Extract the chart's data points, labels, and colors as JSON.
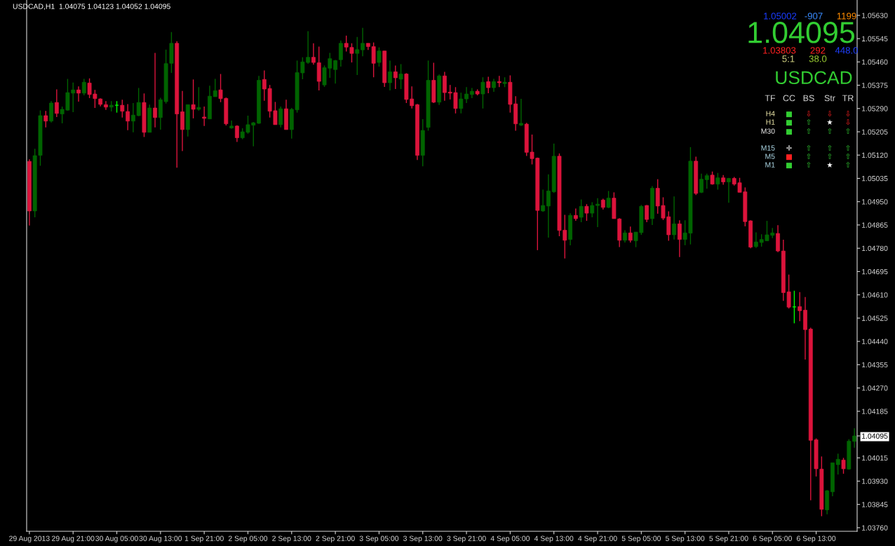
{
  "chart_data": {
    "type": "candlestick",
    "categories": [
      "29 Aug 2013",
      null,
      null,
      null,
      null,
      null,
      null,
      null,
      "29 Aug 21:00",
      null,
      null,
      null,
      null,
      null,
      null,
      null,
      "30 Aug 05:00",
      null,
      null,
      null,
      null,
      null,
      null,
      null,
      "30 Aug 13:00",
      null,
      null,
      null,
      null,
      null,
      null,
      null,
      "1 Sep 21:00",
      null,
      null,
      null,
      null,
      null,
      null,
      null,
      "2 Sep 05:00",
      null,
      null,
      null,
      null,
      null,
      null,
      null,
      "2 Sep 13:00",
      null,
      null,
      null,
      null,
      null,
      null,
      null,
      "2 Sep 21:00",
      null,
      null,
      null,
      null,
      null,
      null,
      null,
      "3 Sep 05:00",
      null,
      null,
      null,
      null,
      null,
      null,
      null,
      "3 Sep 13:00",
      null,
      null,
      null,
      null,
      null,
      null,
      null,
      "3 Sep 21:00",
      null,
      null,
      null,
      null,
      null,
      null,
      null,
      "4 Sep 05:00",
      null,
      null,
      null,
      null,
      null,
      null,
      null,
      "4 Sep 13:00",
      null,
      null,
      null,
      null,
      null,
      null,
      null,
      "4 Sep 21:00",
      null,
      null,
      null,
      null,
      null,
      null,
      null,
      "5 Sep 05:00",
      null,
      null,
      null,
      null,
      null,
      null,
      null,
      "5 Sep 13:00",
      null,
      null,
      null,
      null,
      null,
      null,
      null,
      "5 Sep 21:00",
      null,
      null,
      null,
      null,
      null,
      null,
      null,
      "6 Sep 05:00",
      null,
      null,
      null,
      null,
      null,
      null,
      null,
      "6 Sep 13:00",
      null,
      null,
      null,
      null,
      null,
      null,
      null
    ],
    "ohlc": [
      [
        1.05097,
        1.05105,
        1.04863,
        1.04916
      ],
      [
        1.04916,
        1.05143,
        1.04893,
        1.05118
      ],
      [
        1.05119,
        1.05283,
        1.05081,
        1.05264
      ],
      [
        1.05264,
        1.05281,
        1.05221,
        1.05244
      ],
      [
        1.05244,
        1.05317,
        1.05239,
        1.0531
      ],
      [
        1.05312,
        1.0536,
        1.05259,
        1.05272
      ],
      [
        1.0527,
        1.05297,
        1.05236,
        1.05287
      ],
      [
        1.05284,
        1.05398,
        1.05282,
        1.05348
      ],
      [
        1.05346,
        1.05385,
        1.05277,
        1.05358
      ],
      [
        1.05358,
        1.05371,
        1.05315,
        1.05346
      ],
      [
        1.05346,
        1.05398,
        1.05338,
        1.05386
      ],
      [
        1.05383,
        1.054,
        1.05328,
        1.05341
      ],
      [
        1.05343,
        1.05358,
        1.05292,
        1.05326
      ],
      [
        1.05325,
        1.05327,
        1.05298,
        1.05305
      ],
      [
        1.05304,
        1.05317,
        1.05285,
        1.05295
      ],
      [
        1.05295,
        1.05317,
        1.05279,
        1.05302
      ],
      [
        1.05302,
        1.05317,
        1.05275,
        1.05302
      ],
      [
        1.05302,
        1.05322,
        1.05257,
        1.0528
      ],
      [
        1.05279,
        1.05306,
        1.05211,
        1.05244
      ],
      [
        1.05244,
        1.0531,
        1.05203,
        1.05266
      ],
      [
        1.05264,
        1.05365,
        1.05262,
        1.05312
      ],
      [
        1.05312,
        1.05345,
        1.05186,
        1.05203
      ],
      [
        1.05203,
        1.05304,
        1.05203,
        1.05292
      ],
      [
        1.05292,
        1.05493,
        1.05221,
        1.05257
      ],
      [
        1.05257,
        1.05329,
        1.05213,
        1.05322
      ],
      [
        1.05315,
        1.05505,
        1.05308,
        1.05454
      ],
      [
        1.05455,
        1.05569,
        1.0542,
        1.05528
      ],
      [
        1.05528,
        1.05536,
        1.05074,
        1.0527
      ],
      [
        1.05278,
        1.05354,
        1.05135,
        1.05213
      ],
      [
        1.05213,
        1.05304,
        1.05188,
        1.05304
      ],
      [
        1.05304,
        1.05396,
        1.05254,
        1.05287
      ],
      [
        1.05287,
        1.05368,
        1.05282,
        1.05294
      ],
      [
        1.05259,
        1.05297,
        1.05226,
        1.05254
      ],
      [
        1.05252,
        1.05373,
        1.05252,
        1.05335
      ],
      [
        1.05333,
        1.05398,
        1.05333,
        1.05355
      ],
      [
        1.05358,
        1.05416,
        1.05313,
        1.05326
      ],
      [
        1.05327,
        1.0533,
        1.05228,
        1.05234
      ],
      [
        1.05219,
        1.05246,
        1.05216,
        1.05226
      ],
      [
        1.05226,
        1.05229,
        1.05168,
        1.05183
      ],
      [
        1.05183,
        1.05218,
        1.05178,
        1.05205
      ],
      [
        1.05203,
        1.05264,
        1.05198,
        1.05231
      ],
      [
        1.05229,
        1.05241,
        1.05152,
        1.05238
      ],
      [
        1.05236,
        1.05409,
        1.05234,
        1.05393
      ],
      [
        1.05396,
        1.05429,
        1.05318,
        1.05361
      ],
      [
        1.05363,
        1.05376,
        1.05257,
        1.0528
      ],
      [
        1.05282,
        1.05314,
        1.05231,
        1.05231
      ],
      [
        1.05231,
        1.05297,
        1.05221,
        1.05289
      ],
      [
        1.05289,
        1.05322,
        1.05213,
        1.05213
      ],
      [
        1.05213,
        1.05292,
        1.0518,
        1.05287
      ],
      [
        1.05285,
        1.05465,
        1.05275,
        1.05421
      ],
      [
        1.0542,
        1.05477,
        1.05397,
        1.0546
      ],
      [
        1.05458,
        1.05572,
        1.05453,
        1.05477
      ],
      [
        1.05477,
        1.05528,
        1.0545,
        1.05458
      ],
      [
        1.05457,
        1.05516,
        1.05356,
        1.05389
      ],
      [
        1.05376,
        1.05447,
        1.05369,
        1.05439
      ],
      [
        1.05437,
        1.05493,
        1.05402,
        1.05472
      ],
      [
        1.05432,
        1.05467,
        1.05381,
        1.05465
      ],
      [
        1.05468,
        1.05538,
        1.05443,
        1.05528
      ],
      [
        1.05528,
        1.05556,
        1.05498,
        1.05514
      ],
      [
        1.05513,
        1.05528,
        1.05458,
        1.05491
      ],
      [
        1.05491,
        1.05551,
        1.05412,
        1.05505
      ],
      [
        1.05504,
        1.05584,
        1.05481,
        1.05528
      ],
      [
        1.05528,
        1.05528,
        1.05504,
        1.05516
      ],
      [
        1.05516,
        1.05531,
        1.05404,
        1.05455
      ],
      [
        1.05458,
        1.05513,
        1.05443,
        1.055
      ],
      [
        1.055,
        1.055,
        1.05369,
        1.05384
      ],
      [
        1.05384,
        1.05465,
        1.05356,
        1.05424
      ],
      [
        1.05424,
        1.05447,
        1.05361,
        1.05402
      ],
      [
        1.05397,
        1.05452,
        1.05361,
        1.05416
      ],
      [
        1.05416,
        1.05419,
        1.0531,
        1.05323
      ],
      [
        1.05325,
        1.05371,
        1.0529,
        1.053
      ],
      [
        1.05304,
        1.05307,
        1.05102,
        1.05119
      ],
      [
        1.05119,
        1.05251,
        1.05079,
        1.0521
      ],
      [
        1.05221,
        1.05465,
        1.05209,
        1.05393
      ],
      [
        1.05393,
        1.05457,
        1.0531,
        1.05313
      ],
      [
        1.05313,
        1.05414,
        1.05303,
        1.05409
      ],
      [
        1.05409,
        1.05424,
        1.05318,
        1.05348
      ],
      [
        1.0535,
        1.05376,
        1.05323,
        1.05346
      ],
      [
        1.05348,
        1.05368,
        1.05272,
        1.0529
      ],
      [
        1.0529,
        1.05348,
        1.05272,
        1.05325
      ],
      [
        1.05325,
        1.05368,
        1.0531,
        1.05343
      ],
      [
        1.05341,
        1.05365,
        1.05328,
        1.05353
      ],
      [
        1.05353,
        1.0536,
        1.05338,
        1.05343
      ],
      [
        1.05343,
        1.05404,
        1.0529,
        1.05386
      ],
      [
        1.05388,
        1.05406,
        1.05346,
        1.05366
      ],
      [
        1.05366,
        1.05398,
        1.05351,
        1.05388
      ],
      [
        1.05388,
        1.05409,
        1.05368,
        1.05384
      ],
      [
        1.05381,
        1.05404,
        1.05368,
        1.05386
      ],
      [
        1.05386,
        1.05411,
        1.05275,
        1.05305
      ],
      [
        1.05307,
        1.05335,
        1.05209,
        1.05234
      ],
      [
        1.05229,
        1.05325,
        1.05226,
        1.05236
      ],
      [
        1.05233,
        1.05238,
        1.05117,
        1.0513
      ],
      [
        1.05131,
        1.05195,
        1.05086,
        1.05107
      ],
      [
        1.05109,
        1.05111,
        1.04773,
        1.04918
      ],
      [
        1.04916,
        1.04994,
        1.04913,
        1.04936
      ],
      [
        1.04934,
        1.0505,
        1.04819,
        1.04989
      ],
      [
        1.04986,
        1.05162,
        1.04982,
        1.05116
      ],
      [
        1.05116,
        1.05126,
        1.04824,
        1.04845
      ],
      [
        1.04846,
        1.04902,
        1.04743,
        1.04809
      ],
      [
        1.04812,
        1.04908,
        1.04791,
        1.049
      ],
      [
        1.049,
        1.04925,
        1.0488,
        1.04888
      ],
      [
        1.04893,
        1.04958,
        1.04875,
        1.04933
      ],
      [
        1.04933,
        1.04941,
        1.0488,
        1.04908
      ],
      [
        1.04908,
        1.04948,
        1.04893,
        1.04936
      ],
      [
        1.04936,
        1.04963,
        1.04857,
        1.04941
      ],
      [
        1.04956,
        1.04961,
        1.04921,
        1.04929
      ],
      [
        1.04929,
        1.04989,
        1.04926,
        1.04963
      ],
      [
        1.04963,
        1.04984,
        1.04888,
        1.04888
      ],
      [
        1.04887,
        1.0489,
        1.04784,
        1.04809
      ],
      [
        1.04809,
        1.04846,
        1.04801,
        1.04836
      ],
      [
        1.04836,
        1.04859,
        1.04801,
        1.04809
      ],
      [
        1.04807,
        1.04839,
        1.04784,
        1.04839
      ],
      [
        1.04837,
        1.04938,
        1.04829,
        1.04933
      ],
      [
        1.04936,
        1.04938,
        1.04875,
        1.04885
      ],
      [
        1.04888,
        1.05007,
        1.04865,
        1.04999
      ],
      [
        1.04999,
        1.05032,
        1.04906,
        1.04934
      ],
      [
        1.04936,
        1.04966,
        1.04883,
        1.0489
      ],
      [
        1.04895,
        1.04915,
        1.04807,
        1.04829
      ],
      [
        1.04829,
        1.04969,
        1.04812,
        1.04869
      ],
      [
        1.04869,
        1.04882,
        1.04748,
        1.04812
      ],
      [
        1.04812,
        1.04882,
        1.04791,
        1.04836
      ],
      [
        1.04835,
        1.05149,
        1.04794,
        1.05098
      ],
      [
        1.05098,
        1.05114,
        1.04974,
        1.0498
      ],
      [
        1.04984,
        1.05052,
        1.04981,
        1.05032
      ],
      [
        1.0503,
        1.05052,
        1.04997,
        1.05045
      ],
      [
        1.05047,
        1.0506,
        1.05012,
        1.05014
      ],
      [
        1.05014,
        1.05055,
        1.04994,
        1.05037
      ],
      [
        1.05037,
        1.05047,
        1.05012,
        1.05022
      ],
      [
        1.05022,
        1.05037,
        1.04946,
        1.05035
      ],
      [
        1.05035,
        1.0504,
        1.05009,
        1.05014
      ],
      [
        1.05019,
        1.05037,
        1.04984,
        1.04984
      ],
      [
        1.04986,
        1.05002,
        1.0486,
        1.04877
      ],
      [
        1.0488,
        1.04882,
        1.0478,
        1.04784
      ],
      [
        1.04786,
        1.04838,
        1.04781,
        1.04803
      ],
      [
        1.04801,
        1.04831,
        1.04786,
        1.04812
      ],
      [
        1.04807,
        1.0488,
        1.04807,
        1.04829
      ],
      [
        1.04827,
        1.04854,
        1.04817,
        1.04836
      ],
      [
        1.04834,
        1.04864,
        1.04766,
        1.0477
      ],
      [
        1.0477,
        1.04811,
        1.04588,
        1.04618
      ],
      [
        1.04621,
        1.04684,
        1.0456,
        1.04565
      ],
      [
        1.04566,
        1.04625,
        1.04506,
        1.04566
      ],
      [
        1.04567,
        1.0462,
        1.04514,
        1.04552
      ],
      [
        1.04554,
        1.04602,
        1.04374,
        1.04483
      ],
      [
        1.04485,
        1.0449,
        1.0386,
        1.04079
      ],
      [
        1.04081,
        1.04086,
        1.03947,
        1.03975
      ],
      [
        1.03974,
        1.0402,
        1.03802,
        1.03827
      ],
      [
        1.03825,
        1.03897,
        1.03809,
        1.03895
      ],
      [
        1.03891,
        1.03997,
        1.03875,
        1.03997
      ],
      [
        1.0399,
        1.0403,
        1.03954,
        1.0401
      ],
      [
        1.04007,
        1.04015,
        1.03957,
        1.03975
      ],
      [
        1.03974,
        1.04083,
        1.03972,
        1.04076
      ],
      [
        1.04075,
        1.04123,
        1.04052,
        1.04095
      ]
    ],
    "colors": [
      "#dc143c",
      "#006400",
      "#006400",
      "#dc143c",
      "#006400",
      "#dc143c",
      "#006400",
      "#006400",
      "#006400",
      "#dc143c",
      "#006400",
      "#dc143c",
      "#dc143c",
      "#dc143c",
      "#dc143c",
      "#006400",
      "#00ff00",
      "#dc143c",
      "#dc143c",
      "#006400",
      "#006400",
      "#dc143c",
      "#006400",
      "#dc143c",
      "#006400",
      "#006400",
      "#006400",
      "#dc143c",
      "#dc143c",
      "#006400",
      "#dc143c",
      "#006400",
      "#dc143c",
      "#006400",
      "#006400",
      "#dc143c",
      "#dc143c",
      "#006400",
      "#dc143c",
      "#006400",
      "#006400",
      "#006400",
      "#006400",
      "#dc143c",
      "#dc143c",
      "#dc143c",
      "#006400",
      "#dc143c",
      "#006400",
      "#006400",
      "#006400",
      "#006400",
      "#dc143c",
      "#dc143c",
      "#006400",
      "#006400",
      "#006400",
      "#006400",
      "#dc143c",
      "#dc143c",
      "#006400",
      "#006400",
      "#dc143c",
      "#dc143c",
      "#006400",
      "#dc143c",
      "#006400",
      "#dc143c",
      "#006400",
      "#dc143c",
      "#dc143c",
      "#dc143c",
      "#006400",
      "#006400",
      "#dc143c",
      "#006400",
      "#dc143c",
      "#dc143c",
      "#dc143c",
      "#006400",
      "#006400",
      "#006400",
      "#dc143c",
      "#006400",
      "#dc143c",
      "#006400",
      "#dc143c",
      "#006400",
      "#dc143c",
      "#dc143c",
      "#006400",
      "#dc143c",
      "#dc143c",
      "#dc143c",
      "#006400",
      "#006400",
      "#006400",
      "#dc143c",
      "#dc143c",
      "#006400",
      "#dc143c",
      "#006400",
      "#dc143c",
      "#006400",
      "#006400",
      "#dc143c",
      "#006400",
      "#dc143c",
      "#dc143c",
      "#006400",
      "#dc143c",
      "#006400",
      "#006400",
      "#dc143c",
      "#006400",
      "#dc143c",
      "#dc143c",
      "#dc143c",
      "#006400",
      "#dc143c",
      "#006400",
      "#006400",
      "#dc143c",
      "#006400",
      "#006400",
      "#dc143c",
      "#006400",
      "#dc143c",
      "#006400",
      "#dc143c",
      "#dc143c",
      "#dc143c",
      "#dc143c",
      "#006400",
      "#006400",
      "#006400",
      "#006400",
      "#dc143c",
      "#dc143c",
      "#dc143c",
      "#00ff00",
      "#dc143c",
      "#dc143c",
      "#dc143c",
      "#dc143c",
      "#dc143c",
      "#006400",
      "#006400",
      "#006400",
      "#dc143c",
      "#006400",
      "#006400"
    ],
    "ylim": [
      1.03747,
      1.05686
    ],
    "yticks": [
      {
        "value": 1.0563,
        "label": "1.05630"
      },
      {
        "value": 1.05545,
        "label": "1.05545"
      },
      {
        "value": 1.0546,
        "label": "1.05460"
      },
      {
        "value": 1.05375,
        "label": "1.05375"
      },
      {
        "value": 1.0529,
        "label": "1.05290"
      },
      {
        "value": 1.05205,
        "label": "1.05205"
      },
      {
        "value": 1.0512,
        "label": "1.05120"
      },
      {
        "value": 1.05035,
        "label": "1.05035"
      },
      {
        "value": 1.0495,
        "label": "1.04950"
      },
      {
        "value": 1.04865,
        "label": "1.04865"
      },
      {
        "value": 1.0478,
        "label": "1.04780"
      },
      {
        "value": 1.04695,
        "label": "1.04695"
      },
      {
        "value": 1.0461,
        "label": "1.04610"
      },
      {
        "value": 1.04525,
        "label": "1.04525"
      },
      {
        "value": 1.0444,
        "label": "1.04440"
      },
      {
        "value": 1.04355,
        "label": "1.04355"
      },
      {
        "value": 1.0427,
        "label": "1.04270"
      },
      {
        "value": 1.04185,
        "label": "1.04185"
      },
      {
        "value": 1.04095,
        "label": "1.04095"
      },
      {
        "value": 1.04015,
        "label": "1.04015"
      },
      {
        "value": 1.0393,
        "label": "1.03930"
      },
      {
        "value": 1.03845,
        "label": "1.03845"
      },
      {
        "value": 1.0376,
        "label": "1.03760"
      }
    ],
    "grid": false,
    "legend": false,
    "annotations": [
      "USDCAD,H1  1.04075 1.04123 1.04052 1.04095",
      "1.05002",
      "-907",
      "1199",
      "1.04095",
      "1.03803",
      "292",
      "448.0",
      "5:1",
      "38.0",
      "USDCAD",
      "TF",
      "CC",
      "BS",
      "Str",
      "TR",
      "H4",
      "■",
      "⇩",
      "⇩",
      "⇩",
      "H1",
      "■",
      "⇧",
      "★",
      "⇩",
      "M30",
      "■",
      "⇧",
      "⇧",
      "⇧",
      "M15",
      "✛",
      "⇧",
      "⇧",
      "⇧",
      "M5",
      "■",
      "⇧",
      "⇧",
      "⇧",
      "M1",
      "■",
      "⇧",
      "★",
      "⇧"
    ]
  }
}
